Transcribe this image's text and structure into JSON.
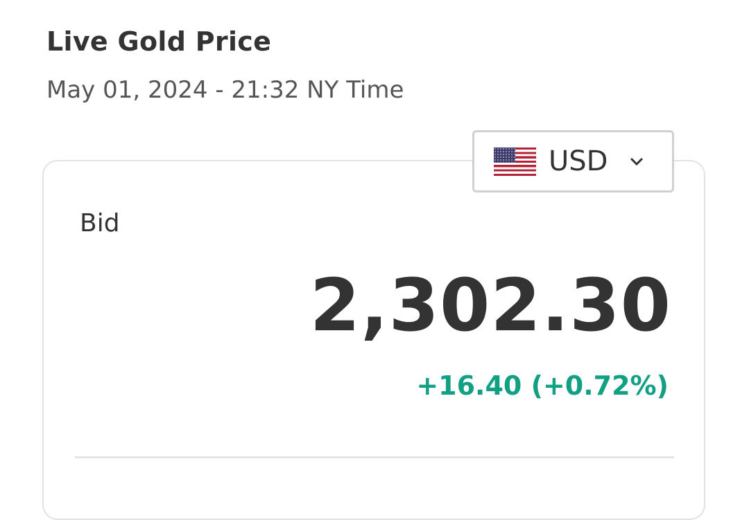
{
  "header": {
    "title": "Live Gold Price",
    "timestamp": "May 01, 2024 - 21:32 NY Time"
  },
  "currency_selector": {
    "selected": "USD",
    "flag_icon": "us-flag-icon",
    "chevron_icon": "chevron-down-icon"
  },
  "price": {
    "bid_label": "Bid",
    "bid_value": "2,302.30",
    "change": "+16.40 (+0.72%)",
    "change_color": "#12a085"
  }
}
